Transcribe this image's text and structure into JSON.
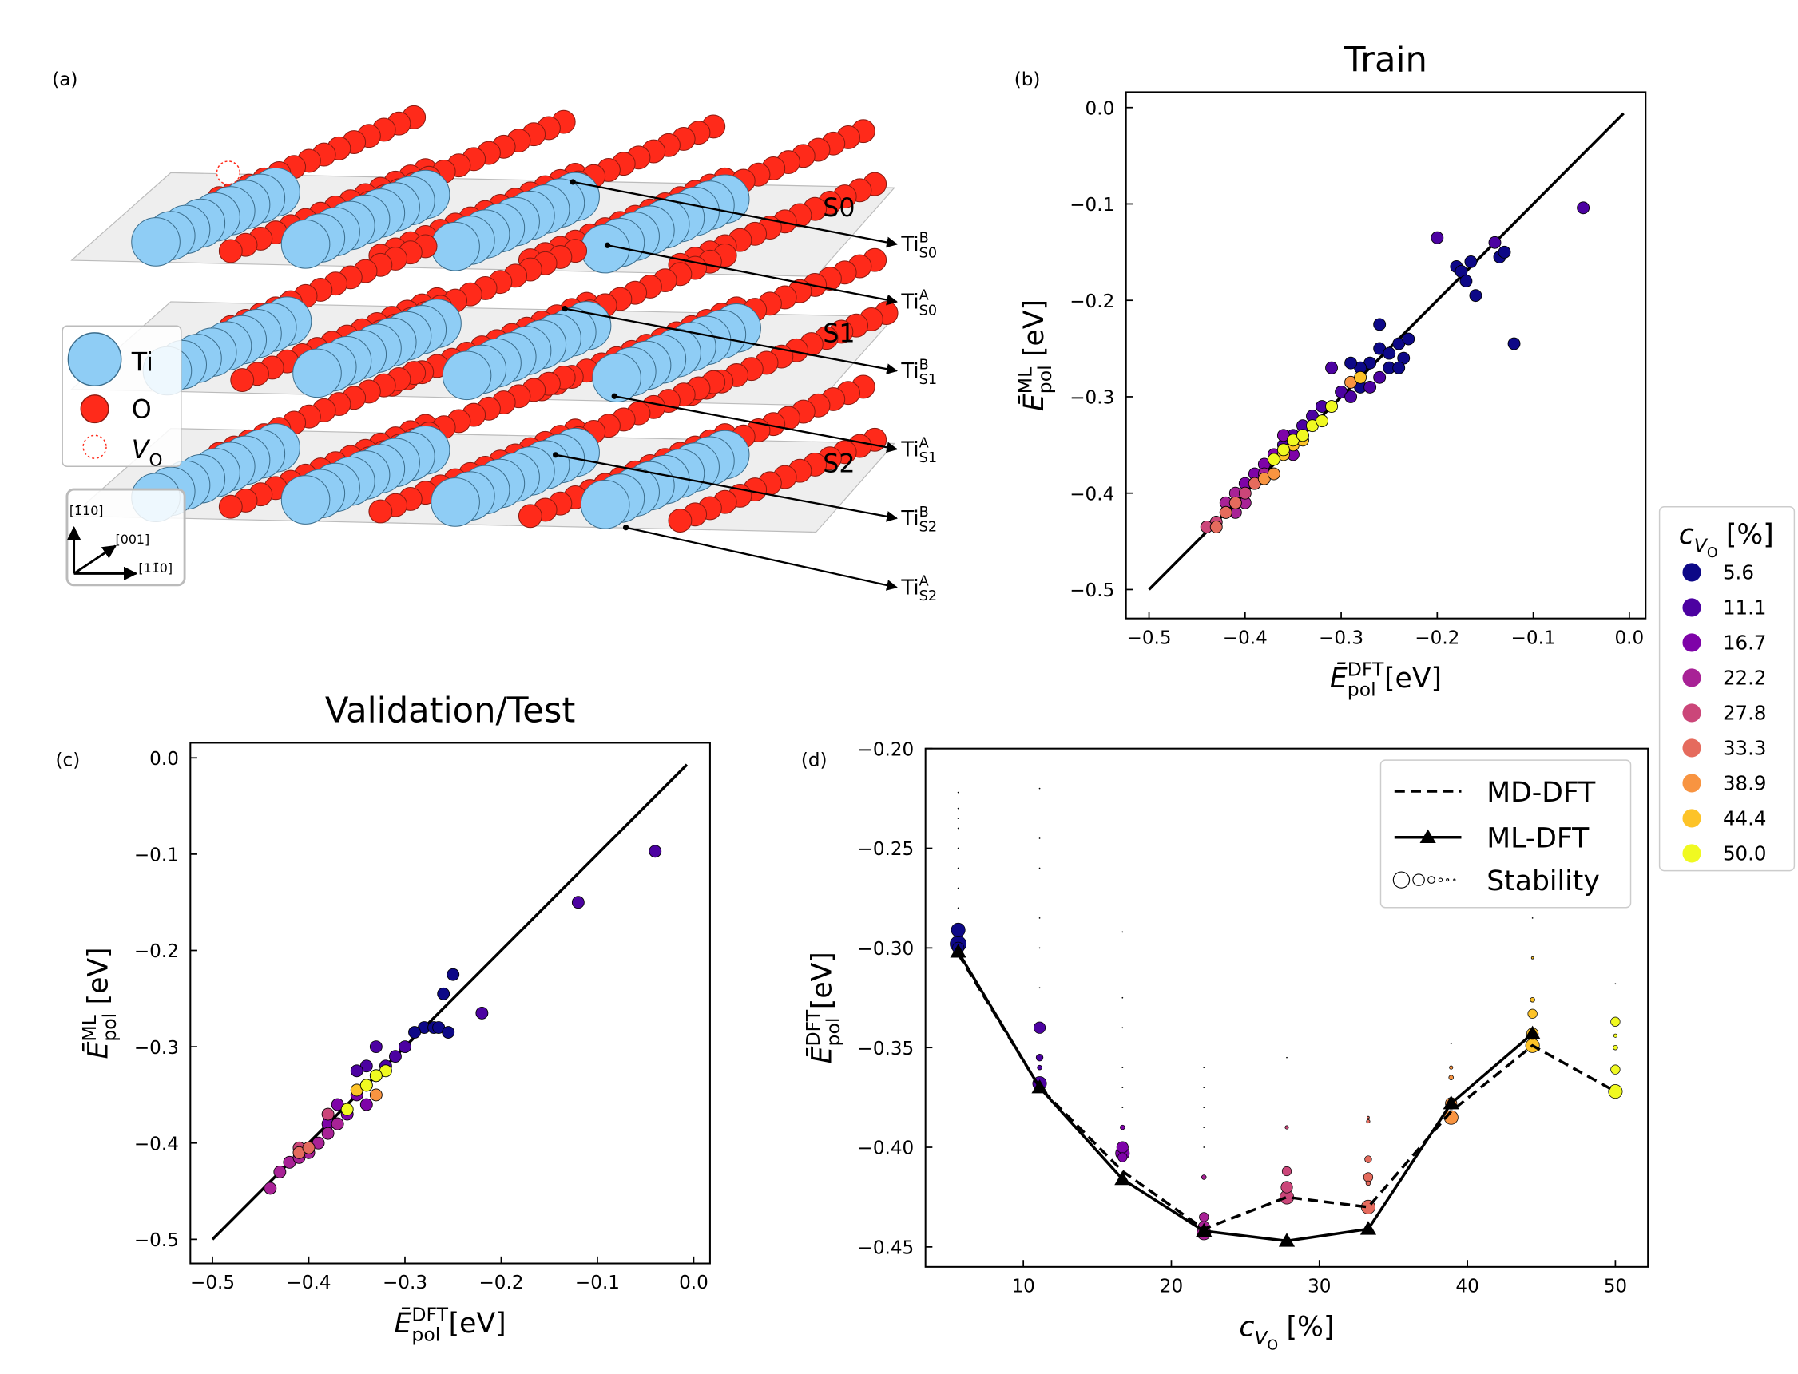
{
  "figure": {
    "panel_labels": [
      "(a)",
      "(b)",
      "(c)",
      "(d)"
    ]
  },
  "diagram": {
    "layers": [
      "S0",
      "S1",
      "S2"
    ],
    "sites": [
      {
        "main": "Ti",
        "sup": "B",
        "sub": "S0"
      },
      {
        "main": "Ti",
        "sup": "A",
        "sub": "S0"
      },
      {
        "main": "Ti",
        "sup": "B",
        "sub": "S1"
      },
      {
        "main": "Ti",
        "sup": "A",
        "sub": "S1"
      },
      {
        "main": "Ti",
        "sup": "B",
        "sub": "S2"
      },
      {
        "main": "Ti",
        "sup": "A",
        "sub": "S2"
      }
    ],
    "legend": [
      {
        "main": "Ti"
      },
      {
        "main": "O"
      },
      {
        "main": "V",
        "sub": "O"
      }
    ],
    "axes": [
      "[1̄10]",
      "[001]",
      "[11̄0]"
    ]
  },
  "chart_data": [
    {
      "type": "scatter",
      "title": "Train",
      "xlabel": {
        "main": "Ē",
        "sup": "DFT",
        "sub": "pol",
        "unit": "[eV]"
      },
      "ylabel": {
        "main": "Ē",
        "sup": "ML",
        "sub": "pol",
        "unit": "[eV]"
      },
      "xlim": [
        -0.524,
        0.017
      ],
      "ylim": [
        -0.53,
        0.016
      ],
      "xticks": [
        {
          "value": -0.5,
          "label": "−0.5"
        },
        {
          "value": -0.4,
          "label": "−0.4"
        },
        {
          "value": -0.3,
          "label": "−0.3"
        },
        {
          "value": -0.2,
          "label": "−0.2"
        },
        {
          "value": -0.1,
          "label": "−0.1"
        },
        {
          "value": 0,
          "label": "0.0"
        }
      ],
      "yticks": [
        {
          "value": -0.5,
          "label": "−0.5"
        },
        {
          "value": -0.4,
          "label": "−0.4"
        },
        {
          "value": -0.3,
          "label": "−0.3"
        },
        {
          "value": -0.2,
          "label": "−0.2"
        },
        {
          "value": -0.1,
          "label": "−0.1"
        },
        {
          "value": 0,
          "label": "0.0"
        }
      ],
      "diagonal": {
        "x": [
          -0.5,
          -0.006
        ],
        "y": [
          -0.5,
          -0.006
        ],
        "color": "#000000"
      },
      "legend": {
        "title": {
          "main": "c",
          "sub": "V",
          "subsub": "O",
          "unit": "[%]"
        },
        "loc": "outside right"
      },
      "series": [
        {
          "name": "5.6",
          "color": "#0d0887",
          "x": [
            -0.12,
            -0.18,
            -0.175,
            -0.165,
            -0.16,
            -0.135,
            -0.13,
            -0.17,
            -0.26,
            -0.26,
            -0.25,
            -0.24,
            -0.23,
            -0.235,
            -0.27,
            -0.28,
            -0.28,
            -0.25,
            -0.29,
            -0.24
          ],
          "y": [
            -0.245,
            -0.165,
            -0.17,
            -0.16,
            -0.195,
            -0.155,
            -0.15,
            -0.18,
            -0.225,
            -0.25,
            -0.255,
            -0.245,
            -0.24,
            -0.26,
            -0.265,
            -0.27,
            -0.29,
            -0.27,
            -0.265,
            -0.27
          ]
        },
        {
          "name": "11.1",
          "color": "#4c02a1",
          "x": [
            -0.2,
            -0.14,
            -0.048,
            -0.31,
            -0.3,
            -0.32,
            -0.33,
            -0.29,
            -0.34,
            -0.35,
            -0.36,
            -0.27,
            -0.26
          ],
          "y": [
            -0.135,
            -0.14,
            -0.104,
            -0.27,
            -0.295,
            -0.31,
            -0.32,
            -0.3,
            -0.33,
            -0.34,
            -0.35,
            -0.29,
            -0.28
          ]
        },
        {
          "name": "16.7",
          "color": "#7e03a8",
          "x": [
            -0.37,
            -0.38,
            -0.36,
            -0.39,
            -0.35,
            -0.4
          ],
          "y": [
            -0.36,
            -0.37,
            -0.34,
            -0.38,
            -0.36,
            -0.39
          ]
        },
        {
          "name": "22.2",
          "color": "#a82296",
          "x": [
            -0.41,
            -0.42,
            -0.4,
            -0.39,
            -0.38,
            -0.41
          ],
          "y": [
            -0.4,
            -0.41,
            -0.41,
            -0.39,
            -0.38,
            -0.42
          ]
        },
        {
          "name": "27.8",
          "color": "#cb4679",
          "x": [
            -0.42,
            -0.43,
            -0.44,
            -0.41,
            -0.4
          ],
          "y": [
            -0.42,
            -0.43,
            -0.435,
            -0.41,
            -0.4
          ]
        },
        {
          "name": "33.3",
          "color": "#e56b5d",
          "x": [
            -0.43,
            -0.42,
            -0.39,
            -0.41
          ],
          "y": [
            -0.435,
            -0.42,
            -0.39,
            -0.41
          ]
        },
        {
          "name": "38.9",
          "color": "#f89441",
          "x": [
            -0.38,
            -0.37,
            -0.29
          ],
          "y": [
            -0.385,
            -0.38,
            -0.285
          ]
        },
        {
          "name": "44.4",
          "color": "#fdc328",
          "x": [
            -0.35,
            -0.36,
            -0.28,
            -0.34
          ],
          "y": [
            -0.35,
            -0.36,
            -0.28,
            -0.345
          ]
        },
        {
          "name": "50.0",
          "color": "#f0f921",
          "x": [
            -0.37,
            -0.36,
            -0.35,
            -0.34,
            -0.33,
            -0.32,
            -0.31
          ],
          "y": [
            -0.365,
            -0.355,
            -0.345,
            -0.34,
            -0.33,
            -0.325,
            -0.31
          ]
        }
      ]
    },
    {
      "type": "scatter",
      "title": "Validation/Test",
      "xlabel": {
        "main": "Ē",
        "sup": "DFT",
        "sub": "pol",
        "unit": "[eV]"
      },
      "ylabel": {
        "main": "Ē",
        "sup": "ML",
        "sub": "pol",
        "unit": "[eV]"
      },
      "xlim": [
        -0.523,
        0.017
      ],
      "ylim": [
        -0.525,
        0.0156
      ],
      "xticks": [
        {
          "value": -0.5,
          "label": "−0.5"
        },
        {
          "value": -0.4,
          "label": "−0.4"
        },
        {
          "value": -0.3,
          "label": "−0.3"
        },
        {
          "value": -0.2,
          "label": "−0.2"
        },
        {
          "value": -0.1,
          "label": "−0.1"
        },
        {
          "value": 0,
          "label": "0.0"
        }
      ],
      "yticks": [
        {
          "value": -0.5,
          "label": "−0.5"
        },
        {
          "value": -0.4,
          "label": "−0.4"
        },
        {
          "value": -0.3,
          "label": "−0.3"
        },
        {
          "value": -0.2,
          "label": "−0.2"
        },
        {
          "value": -0.1,
          "label": "−0.1"
        },
        {
          "value": 0,
          "label": "0.0"
        }
      ],
      "diagonal": {
        "x": [
          -0.5,
          -0.007
        ],
        "y": [
          -0.5,
          -0.007
        ],
        "color": "#000000"
      },
      "series": [
        {
          "color": "#0d0887",
          "x": [
            -0.26,
            -0.25,
            -0.28,
            -0.27,
            -0.29,
            -0.265,
            -0.255
          ],
          "y": [
            -0.245,
            -0.225,
            -0.28,
            -0.28,
            -0.285,
            -0.28,
            -0.285
          ]
        },
        {
          "color": "#4c02a1",
          "x": [
            -0.04,
            -0.12,
            -0.22,
            -0.3,
            -0.32,
            -0.33,
            -0.34,
            -0.35,
            -0.31
          ],
          "y": [
            -0.097,
            -0.15,
            -0.265,
            -0.3,
            -0.32,
            -0.3,
            -0.32,
            -0.325,
            -0.31
          ]
        },
        {
          "color": "#7e03a8",
          "x": [
            -0.35,
            -0.37,
            -0.36,
            -0.34,
            -0.38
          ],
          "y": [
            -0.35,
            -0.36,
            -0.37,
            -0.36,
            -0.38
          ]
        },
        {
          "color": "#a82296",
          "x": [
            -0.44,
            -0.43,
            -0.42,
            -0.4,
            -0.39,
            -0.38,
            -0.37,
            -0.41
          ],
          "y": [
            -0.447,
            -0.43,
            -0.42,
            -0.41,
            -0.4,
            -0.39,
            -0.38,
            -0.415
          ]
        },
        {
          "color": "#cb4679",
          "x": [
            -0.41,
            -0.38,
            -0.33
          ],
          "y": [
            -0.405,
            -0.37,
            -0.33
          ]
        },
        {
          "color": "#e56b5d",
          "x": [
            -0.41,
            -0.4
          ],
          "y": [
            -0.41,
            -0.405
          ]
        },
        {
          "color": "#f89441",
          "x": [
            -0.33
          ],
          "y": [
            -0.35
          ]
        },
        {
          "color": "#fdc328",
          "x": [
            -0.35,
            -0.34
          ],
          "y": [
            -0.345,
            -0.34
          ]
        },
        {
          "color": "#f0f921",
          "x": [
            -0.34,
            -0.32,
            -0.33,
            -0.36
          ],
          "y": [
            -0.34,
            -0.325,
            -0.33,
            -0.365
          ]
        }
      ]
    },
    {
      "type": "line",
      "xlabel": {
        "main": "c",
        "sub": "V",
        "subsub": "O",
        "unit": "[%]"
      },
      "ylabel": {
        "main": "Ē",
        "sup": "DFT",
        "sub": "pol",
        "unit": "[eV]"
      },
      "xlim": [
        3.39,
        52.2
      ],
      "ylim": [
        -0.46,
        -0.2
      ],
      "xticks": [
        10,
        20,
        30,
        40,
        50
      ],
      "yticks": [
        {
          "value": -0.2,
          "label": "−0.20"
        },
        {
          "value": -0.25,
          "label": "−0.25"
        },
        {
          "value": -0.3,
          "label": "−0.30"
        },
        {
          "value": -0.35,
          "label": "−0.35"
        },
        {
          "value": -0.4,
          "label": "−0.40"
        },
        {
          "value": -0.45,
          "label": "−0.45"
        }
      ],
      "legend_loc": "upper right",
      "x": [
        5.6,
        11.1,
        16.7,
        22.2,
        27.8,
        33.3,
        38.9,
        44.4,
        50.0
      ],
      "series": [
        {
          "name": "MD-DFT",
          "color": "#000000",
          "dash": true,
          "values": [
            -0.303,
            -0.37,
            -0.412,
            -0.441,
            -0.425,
            -0.43,
            -0.382,
            -0.349,
            -0.372
          ]
        },
        {
          "name": "ML-DFT",
          "color": "#000000",
          "marker": "triangle",
          "values": [
            -0.302,
            -0.37,
            -0.416,
            -0.442,
            -0.447,
            -0.441,
            -0.378,
            -0.343,
            null
          ]
        }
      ],
      "bubbles": {
        "name": "Stability",
        "groups": [
          {
            "x": 5.6,
            "color": "#0d0887",
            "values": [
              -0.298,
              -0.291,
              -0.3,
              -0.222,
              -0.23,
              -0.235,
              -0.24,
              -0.25,
              -0.26,
              -0.27,
              -0.28
            ],
            "sizes": [
              7,
              6,
              5,
              0.6,
              0.6,
              0.6,
              0.6,
              0.6,
              0.6,
              0.6,
              0.6
            ]
          },
          {
            "x": 11.1,
            "color": "#4c02a1",
            "values": [
              -0.368,
              -0.34,
              -0.355,
              -0.36,
              -0.22,
              -0.245,
              -0.26,
              -0.285,
              -0.3,
              -0.32
            ],
            "sizes": [
              6,
              5,
              3,
              2,
              0.6,
              0.6,
              0.6,
              0.6,
              0.6,
              0.6
            ]
          },
          {
            "x": 16.7,
            "color": "#7e03a8",
            "values": [
              -0.403,
              -0.4,
              -0.405,
              -0.39,
              -0.292,
              -0.325,
              -0.34,
              -0.36,
              -0.37,
              -0.38
            ],
            "sizes": [
              6,
              5,
              4,
              2,
              0.6,
              0.6,
              0.6,
              0.6,
              0.6,
              0.6
            ]
          },
          {
            "x": 22.2,
            "color": "#a82296",
            "values": [
              -0.443,
              -0.44,
              -0.435,
              -0.415,
              -0.36,
              -0.37,
              -0.38,
              -0.39,
              -0.4
            ],
            "sizes": [
              6,
              5,
              4,
              2,
              0.6,
              0.6,
              0.6,
              0.6,
              0.6
            ]
          },
          {
            "x": 27.8,
            "color": "#cb4679",
            "values": [
              -0.425,
              -0.42,
              -0.412,
              -0.39,
              -0.355
            ],
            "sizes": [
              6,
              5,
              4,
              1.5,
              0.6
            ]
          },
          {
            "x": 33.3,
            "color": "#e56b5d",
            "values": [
              -0.43,
              -0.415,
              -0.406,
              -0.418,
              -0.387,
              -0.385
            ],
            "sizes": [
              6,
              4,
              3,
              2,
              1.5,
              1
            ]
          },
          {
            "x": 38.9,
            "color": "#f89441",
            "values": [
              -0.385,
              -0.378,
              -0.365,
              -0.36,
              -0.348
            ],
            "sizes": [
              6,
              5,
              2,
              1.5,
              0.6
            ]
          },
          {
            "x": 44.4,
            "color": "#fdc328",
            "values": [
              -0.349,
              -0.343,
              -0.333,
              -0.326,
              -0.305,
              -0.285
            ],
            "sizes": [
              6,
              5,
              4,
              2,
              1,
              0.6
            ]
          },
          {
            "x": 50.0,
            "color": "#f0f921",
            "values": [
              -0.372,
              -0.361,
              -0.337,
              -0.35,
              -0.344,
              -0.318
            ],
            "sizes": [
              6,
              4,
              4,
              2,
              1.5,
              0.6
            ]
          }
        ]
      }
    }
  ]
}
